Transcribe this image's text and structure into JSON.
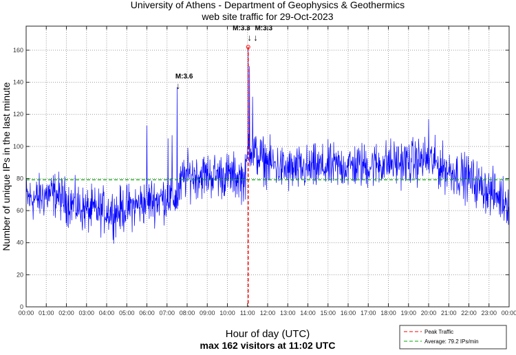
{
  "chart_data": {
    "type": "line",
    "title": "University of Athens - Department of Geophysics & Geothermics",
    "subtitle": "web site traffic for 29-Oct-2023",
    "xlabel": "Hour of day (UTC)",
    "xlabel2": "max 162 visitors at 11:02 UTC",
    "ylabel": "Number of unique IPs in the last minute",
    "xlim": [
      0,
      24
    ],
    "ylim": [
      0,
      175
    ],
    "grid": true,
    "xticks": [
      "00:00",
      "01:00",
      "02:00",
      "03:00",
      "04:00",
      "05:00",
      "06:00",
      "07:00",
      "08:00",
      "09:00",
      "10:00",
      "11:00",
      "12:00",
      "13:00",
      "14:00",
      "15:00",
      "16:00",
      "17:00",
      "18:00",
      "19:00",
      "20:00",
      "21:00",
      "22:00",
      "23:00",
      "00:00"
    ],
    "yticks": [
      0,
      20,
      40,
      60,
      80,
      100,
      120,
      140,
      160
    ],
    "series": [
      {
        "name": "traffic",
        "color": "#0000ff",
        "profile_hours": [
          0,
          0.5,
          1,
          1.5,
          2,
          2.5,
          3,
          3.5,
          4,
          4.5,
          5,
          5.5,
          6,
          6.5,
          7,
          7.5,
          7.8,
          8,
          9,
          10,
          10.9,
          11.05,
          11.3,
          12,
          13,
          14,
          15,
          16,
          17,
          18,
          19,
          20,
          20.5,
          21,
          22,
          23,
          24
        ],
        "profile_values": [
          68,
          67,
          70,
          70,
          66,
          63,
          60,
          60,
          60,
          59,
          62,
          63,
          66,
          67,
          68,
          68,
          80,
          82,
          82,
          82,
          80,
          102,
          96,
          90,
          85,
          86,
          87,
          88,
          88,
          90,
          90,
          92,
          88,
          85,
          80,
          72,
          65
        ],
        "spikes": [
          [
            6.0,
            113
          ],
          [
            7.05,
            105
          ],
          [
            7.25,
            107
          ],
          [
            7.5,
            137
          ],
          [
            11.03,
            162
          ],
          [
            11.25,
            131
          ],
          [
            20.0,
            117
          ],
          [
            11.1,
            150
          ]
        ]
      }
    ],
    "peak": {
      "hour": 11.033,
      "value": 162,
      "color": "#ff0000"
    },
    "average": {
      "value": 79.2,
      "color": "#00aa00"
    },
    "annotations": [
      {
        "hour": 7.55,
        "value": 136,
        "text": "M:3.6"
      },
      {
        "hour": 11.1,
        "value": 166,
        "text": "M:3.3"
      },
      {
        "hour": 11.4,
        "value": 166,
        "text": "M:3.3"
      }
    ],
    "legend": {
      "position": "bottom-right",
      "entries": [
        "Peak Traffic",
        "Average: 79.2 IPs/min"
      ]
    }
  }
}
